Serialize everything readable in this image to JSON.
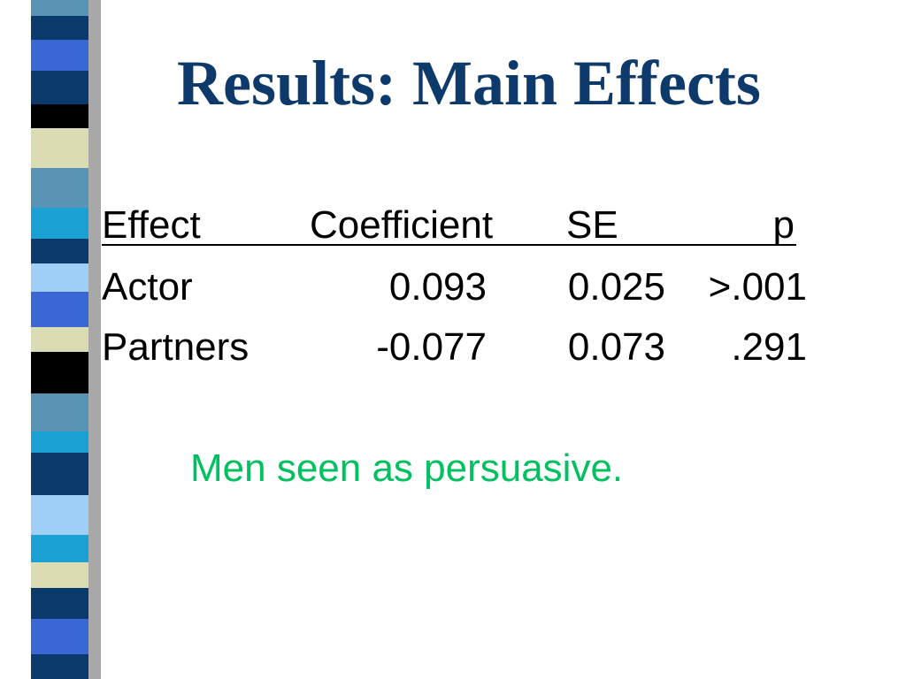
{
  "title": "Results: Main Effects",
  "table": {
    "header": [
      "Effect",
      "Coefficient",
      "SE",
      "p"
    ],
    "rows": [
      [
        "Actor",
        "0.093",
        "0.025",
        ">.001"
      ],
      [
        "Partners",
        "-0.077",
        "0.073",
        ".291"
      ]
    ]
  },
  "note": "Men seen as persuasive."
}
